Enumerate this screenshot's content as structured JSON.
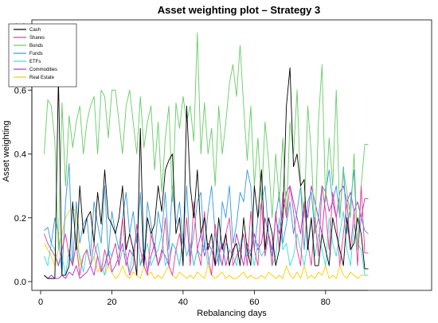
{
  "chart_data": {
    "type": "line",
    "title": "Asset weighting plot – Strategy 3",
    "xlabel": "Rebalancing days",
    "ylabel": "Asset weighting",
    "xlim": [
      0,
      94
    ],
    "ylim": [
      -0.02,
      0.8
    ],
    "x_ticks": [
      "0",
      "20",
      "40",
      "60",
      "80"
    ],
    "y_ticks": [
      "0.0",
      "0.2",
      "0.4",
      "0.6",
      "0.8"
    ],
    "legend_position": "top-left",
    "x": [
      1,
      2,
      3,
      4,
      5,
      6,
      7,
      8,
      9,
      10,
      11,
      12,
      13,
      14,
      15,
      16,
      17,
      18,
      19,
      20,
      21,
      22,
      23,
      24,
      25,
      26,
      27,
      28,
      29,
      30,
      31,
      32,
      33,
      34,
      35,
      36,
      37,
      38,
      39,
      40,
      41,
      42,
      43,
      44,
      45,
      46,
      47,
      48,
      49,
      50,
      51,
      52,
      53,
      54,
      55,
      56,
      57,
      58,
      59,
      60,
      61,
      62,
      63,
      64,
      65,
      66,
      67,
      68,
      69,
      70,
      71,
      72,
      73,
      74,
      75,
      76,
      77,
      78,
      79,
      80,
      81,
      82,
      83,
      84,
      85,
      86,
      87,
      88,
      89,
      90,
      91,
      92
    ],
    "series": [
      {
        "name": "Cash",
        "color": "#000000",
        "values": [
          0.02,
          0.01,
          0.01,
          0.01,
          0.64,
          0.02,
          0.02,
          0.05,
          0.25,
          0.1,
          0.3,
          0.15,
          0.2,
          0.22,
          0.12,
          0.28,
          0.18,
          0.35,
          0.2,
          0.18,
          0.15,
          0.2,
          0.3,
          0.1,
          0.15,
          0.1,
          0.02,
          0.48,
          0.05,
          0.2,
          0.15,
          0.18,
          0.3,
          0.22,
          0.35,
          0.38,
          0.4,
          0.15,
          0.2,
          0.05,
          0.55,
          0.3,
          0.2,
          0.35,
          0.15,
          0.2,
          0.1,
          0.15,
          0.05,
          0.2,
          0.1,
          0.15,
          0.05,
          0.1,
          0.12,
          0.05,
          0.2,
          0.1,
          0.05,
          0.3,
          0.2,
          0.35,
          0.1,
          0.2,
          0.15,
          0.05,
          0.1,
          0.2,
          0.55,
          0.67,
          0.36,
          0.4,
          0.3,
          0.32,
          0.1,
          0.2,
          0.05,
          0.05,
          0.15,
          0.1,
          0.05,
          0.2,
          0.15,
          0.1,
          0.05,
          0.2,
          0.1,
          0.12,
          0.2,
          0.15,
          0.04,
          0.04
        ]
      },
      {
        "name": "Shares",
        "color": "#e8398f",
        "values": [
          0.15,
          0.12,
          0.1,
          0.08,
          0.05,
          0.1,
          0.15,
          0.08,
          0.05,
          0.12,
          0.02,
          0.08,
          0.1,
          0.05,
          0.12,
          0.08,
          0.03,
          0.1,
          0.05,
          0.08,
          0.12,
          0.05,
          0.2,
          0.08,
          0.02,
          0.05,
          0.18,
          0.1,
          0.05,
          0.02,
          0.15,
          0.1,
          0.05,
          0.08,
          0.2,
          0.05,
          0.02,
          0.1,
          0.15,
          0.08,
          0.2,
          0.05,
          0.25,
          0.1,
          0.05,
          0.22,
          0.08,
          0.02,
          0.18,
          0.1,
          0.05,
          0.15,
          0.2,
          0.05,
          0.08,
          0.1,
          0.15,
          0.05,
          0.22,
          0.1,
          0.05,
          0.25,
          0.08,
          0.15,
          0.05,
          0.22,
          0.1,
          0.28,
          0.2,
          0.3,
          0.22,
          0.1,
          0.05,
          0.25,
          0.12,
          0.05,
          0.2,
          0.08,
          0.3,
          0.22,
          0.1,
          0.28,
          0.2,
          0.05,
          0.15,
          0.25,
          0.1,
          0.22,
          0.05,
          0.3,
          0.09,
          0.09
        ]
      },
      {
        "name": "Bonds",
        "color": "#66cc66",
        "values": [
          0.4,
          0.57,
          0.55,
          0.44,
          0.1,
          0.56,
          0.3,
          0.52,
          0.42,
          0.5,
          0.55,
          0.4,
          0.5,
          0.55,
          0.58,
          0.4,
          0.6,
          0.58,
          0.45,
          0.6,
          0.6,
          0.5,
          0.4,
          0.55,
          0.6,
          0.5,
          0.4,
          0.58,
          0.42,
          0.5,
          0.55,
          0.35,
          0.5,
          0.28,
          0.45,
          0.55,
          0.25,
          0.56,
          0.48,
          0.58,
          0.5,
          0.55,
          0.44,
          0.78,
          0.4,
          0.56,
          0.4,
          0.48,
          0.3,
          0.55,
          0.4,
          0.5,
          0.62,
          0.68,
          0.58,
          0.74,
          0.55,
          0.38,
          0.55,
          0.3,
          0.45,
          0.25,
          0.5,
          0.38,
          0.2,
          0.4,
          0.25,
          0.45,
          0.2,
          0.5,
          0.4,
          0.6,
          0.3,
          0.2,
          0.55,
          0.4,
          0.15,
          0.5,
          0.68,
          0.25,
          0.45,
          0.3,
          0.6,
          0.2,
          0.35,
          0.28,
          0.2,
          0.4,
          0.1,
          0.3,
          0.43,
          0.43
        ]
      },
      {
        "name": "Funds",
        "color": "#3399dd",
        "values": [
          0.16,
          0.17,
          0.12,
          0.2,
          0.15,
          0.02,
          0.25,
          0.37,
          0.05,
          0.25,
          0.12,
          0.18,
          0.2,
          0.08,
          0.25,
          0.18,
          0.12,
          0.3,
          0.08,
          0.22,
          0.15,
          0.1,
          0.2,
          0.28,
          0.15,
          0.22,
          0.12,
          0.28,
          0.05,
          0.25,
          0.18,
          0.1,
          0.22,
          0.15,
          0.28,
          0.1,
          0.3,
          0.18,
          0.25,
          0.12,
          0.3,
          0.08,
          0.15,
          0.25,
          0.28,
          0.1,
          0.22,
          0.3,
          0.15,
          0.05,
          0.25,
          0.2,
          0.3,
          0.12,
          0.18,
          0.28,
          0.25,
          0.35,
          0.3,
          0.1,
          0.2,
          0.25,
          0.3,
          0.15,
          0.08,
          0.2,
          0.28,
          0.12,
          0.18,
          0.25,
          0.15,
          0.22,
          0.3,
          0.1,
          0.25,
          0.28,
          0.15,
          0.2,
          0.3,
          0.28,
          0.35,
          0.25,
          0.3,
          0.2,
          0.36,
          0.15,
          0.25,
          0.35,
          0.1,
          0.2,
          0.16,
          0.15
        ]
      },
      {
        "name": "ETFs",
        "color": "#33dddd",
        "values": [
          0.08,
          0.05,
          0.12,
          0.1,
          0.05,
          0.08,
          0.02,
          0.1,
          0.05,
          0.12,
          0.08,
          0.03,
          0.1,
          0.05,
          0.08,
          0.12,
          0.05,
          0.02,
          0.1,
          0.08,
          0.12,
          0.05,
          0.1,
          0.08,
          0.03,
          0.1,
          0.15,
          0.05,
          0.08,
          0.12,
          0.05,
          0.08,
          0.1,
          0.15,
          0.05,
          0.08,
          0.12,
          0.1,
          0.05,
          0.15,
          0.08,
          0.12,
          0.05,
          0.1,
          0.08,
          0.12,
          0.05,
          0.1,
          0.15,
          0.08,
          0.05,
          0.12,
          0.1,
          0.08,
          0.05,
          0.12,
          0.15,
          0.08,
          0.1,
          0.05,
          0.12,
          0.08,
          0.1,
          0.15,
          0.05,
          0.08,
          0.2,
          0.1,
          0.12,
          0.05,
          0.08,
          0.15,
          0.1,
          0.05,
          0.12,
          0.2,
          0.08,
          0.15,
          0.1,
          0.05,
          0.2,
          0.12,
          0.08,
          0.15,
          0.22,
          0.1,
          0.05,
          0.18,
          0.12,
          0.1,
          0.02,
          0.02
        ]
      },
      {
        "name": "Commodities",
        "color": "#aa33cc",
        "values": [
          0.02,
          0.01,
          0.02,
          0.01,
          0.01,
          0.02,
          0.01,
          0.03,
          0.02,
          0.05,
          0.01,
          0.02,
          0.03,
          0.05,
          0.02,
          0.08,
          0.03,
          0.05,
          0.1,
          0.03,
          0.05,
          0.08,
          0.12,
          0.05,
          0.1,
          0.08,
          0.15,
          0.05,
          0.1,
          0.03,
          0.08,
          0.12,
          0.05,
          0.1,
          0.08,
          0.05,
          0.12,
          0.1,
          0.05,
          0.15,
          0.08,
          0.12,
          0.05,
          0.1,
          0.15,
          0.08,
          0.12,
          0.1,
          0.05,
          0.08,
          0.12,
          0.05,
          0.1,
          0.08,
          0.15,
          0.1,
          0.05,
          0.12,
          0.08,
          0.15,
          0.1,
          0.12,
          0.2,
          0.15,
          0.1,
          0.2,
          0.15,
          0.22,
          0.28,
          0.3,
          0.25,
          0.2,
          0.15,
          0.25,
          0.2,
          0.3,
          0.25,
          0.2,
          0.15,
          0.28,
          0.22,
          0.25,
          0.2,
          0.28,
          0.3,
          0.25,
          0.28,
          0.22,
          0.25,
          0.2,
          0.26,
          0.26
        ]
      },
      {
        "name": "Real Estate",
        "color": "#ffcc00",
        "values": [
          0.12,
          0.1,
          0.08,
          0.05,
          0.1,
          0.15,
          0.2,
          0.22,
          0.23,
          0.22,
          0.05,
          0.08,
          0.1,
          0.05,
          0.08,
          0.03,
          0.05,
          0.02,
          0.05,
          0.03,
          0.01,
          0.02,
          0.05,
          0.02,
          0.01,
          0.03,
          0.02,
          0.01,
          0.05,
          0.02,
          0.03,
          0.01,
          0.02,
          0.01,
          0.03,
          0.05,
          0.02,
          0.01,
          0.03,
          0.02,
          0.01,
          0.02,
          0.01,
          0.03,
          0.02,
          0.01,
          0.05,
          0.02,
          0.01,
          0.02,
          0.03,
          0.01,
          0.02,
          0.01,
          0.01,
          0.02,
          0.03,
          0.01,
          0.02,
          0.01,
          0.01,
          0.02,
          0.01,
          0.03,
          0.02,
          0.01,
          0.02,
          0.01,
          0.05,
          0.02,
          0.01,
          0.03,
          0.01,
          0.05,
          0.01,
          0.02,
          0.01,
          0.03,
          0.02,
          0.05,
          0.01,
          0.02,
          0.01,
          0.05,
          0.02,
          0.01,
          0.03,
          0.02,
          0.01,
          0.02,
          0.02,
          0.02
        ]
      }
    ]
  }
}
